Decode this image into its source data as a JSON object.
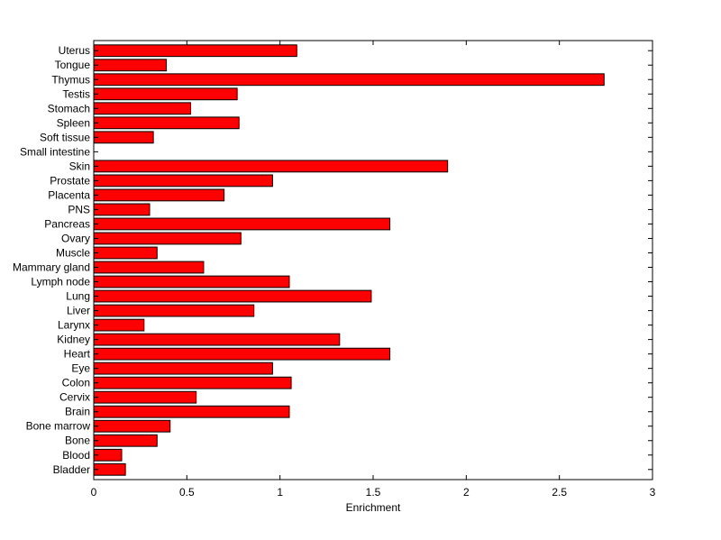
{
  "chart_data": {
    "type": "bar",
    "orientation": "horizontal",
    "title": "",
    "xlabel": "Enrichment",
    "ylabel": "",
    "xlim": [
      0,
      3
    ],
    "xticks": [
      0,
      0.5,
      1,
      1.5,
      2,
      2.5,
      3
    ],
    "xtick_labels": [
      "0",
      "0.5",
      "1",
      "1.5",
      "2",
      "2.5",
      "3"
    ],
    "bar_color": "#ff0000",
    "bar_edge_color": "#000000",
    "grid": false,
    "categories": [
      "Uterus",
      "Tongue",
      "Thymus",
      "Testis",
      "Stomach",
      "Spleen",
      "Soft tissue",
      "Small intestine",
      "Skin",
      "Prostate",
      "Placenta",
      "PNS",
      "Pancreas",
      "Ovary",
      "Muscle",
      "Mammary gland",
      "Lymph node",
      "Lung",
      "Liver",
      "Larynx",
      "Kidney",
      "Heart",
      "Eye",
      "Colon",
      "Cervix",
      "Brain",
      "Bone marrow",
      "Bone",
      "Blood",
      "Bladder"
    ],
    "values": [
      1.09,
      0.39,
      2.74,
      0.77,
      0.52,
      0.78,
      0.32,
      0,
      1.9,
      0.96,
      0.7,
      0.3,
      1.59,
      0.79,
      0.34,
      0.59,
      1.05,
      1.49,
      0.86,
      0.27,
      1.32,
      1.59,
      0.96,
      1.06,
      0.55,
      1.05,
      0.41,
      0.34,
      0.15,
      0.17
    ]
  }
}
